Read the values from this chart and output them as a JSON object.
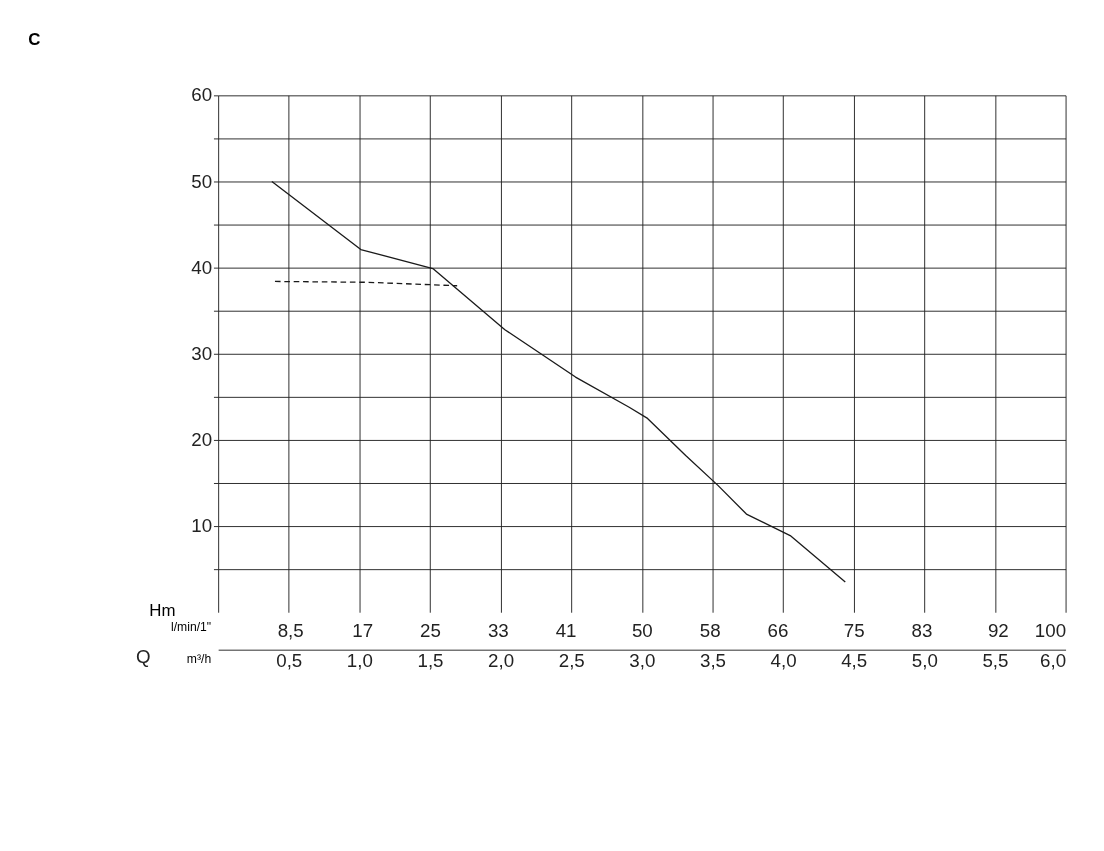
{
  "chart_data": {
    "type": "line",
    "title": "C",
    "xlabel": "m³/h",
    "x2label": "l/min/1\"",
    "ylabel": "Hm",
    "annotations": [
      "Q"
    ],
    "xlim": [
      0,
      6
    ],
    "ylim": [
      0,
      60
    ],
    "xticks": [
      {
        "value": 0.5,
        "label": "0,5"
      },
      {
        "value": 1,
        "label": "1,0"
      },
      {
        "value": 1.5,
        "label": "1,5"
      },
      {
        "value": 2,
        "label": "2,0"
      },
      {
        "value": 2.5,
        "label": "2,5"
      },
      {
        "value": 3,
        "label": "3,0"
      },
      {
        "value": 3.5,
        "label": "3,5"
      },
      {
        "value": 4,
        "label": "4,0"
      },
      {
        "value": 4.5,
        "label": "4,5"
      },
      {
        "value": 5,
        "label": "5,0"
      },
      {
        "value": 5.5,
        "label": "5,5"
      },
      {
        "value": 6,
        "label": "6,0"
      }
    ],
    "x2lim": [
      0,
      100
    ],
    "x2ticks": [
      {
        "value": 8.5,
        "label": "8,5"
      },
      17,
      25,
      33,
      41,
      50,
      58,
      66,
      75,
      83,
      92,
      100
    ],
    "yticks": [
      {
        "value": 5,
        "label": null
      },
      10,
      {
        "value": 15,
        "label": null
      },
      20,
      {
        "value": 25,
        "label": null
      },
      30,
      {
        "value": 35,
        "label": null
      },
      40,
      {
        "value": 45,
        "label": null
      },
      50,
      {
        "value": 55,
        "label": null
      },
      60
    ],
    "grid": true,
    "series": [
      {
        "color": "#1a1a1a",
        "line_style": "solid",
        "x": [
          0.38,
          1.01,
          1.52,
          2.03,
          2.53,
          2.91,
          3.04,
          3.31,
          3.54,
          3.74,
          4.05,
          4.44
        ],
        "values": [
          50.0,
          42.1,
          39.9,
          32.8,
          27.3,
          23.8,
          22.5,
          18.2,
          14.7,
          11.4,
          8.9,
          3.5
        ]
      },
      {
        "color": "#1a1a1a",
        "line_style": "dashed",
        "axis": "x2",
        "x": [
          6.7,
          17.7,
          28.2
        ],
        "values": [
          38.4,
          38.3,
          37.9
        ]
      }
    ]
  }
}
